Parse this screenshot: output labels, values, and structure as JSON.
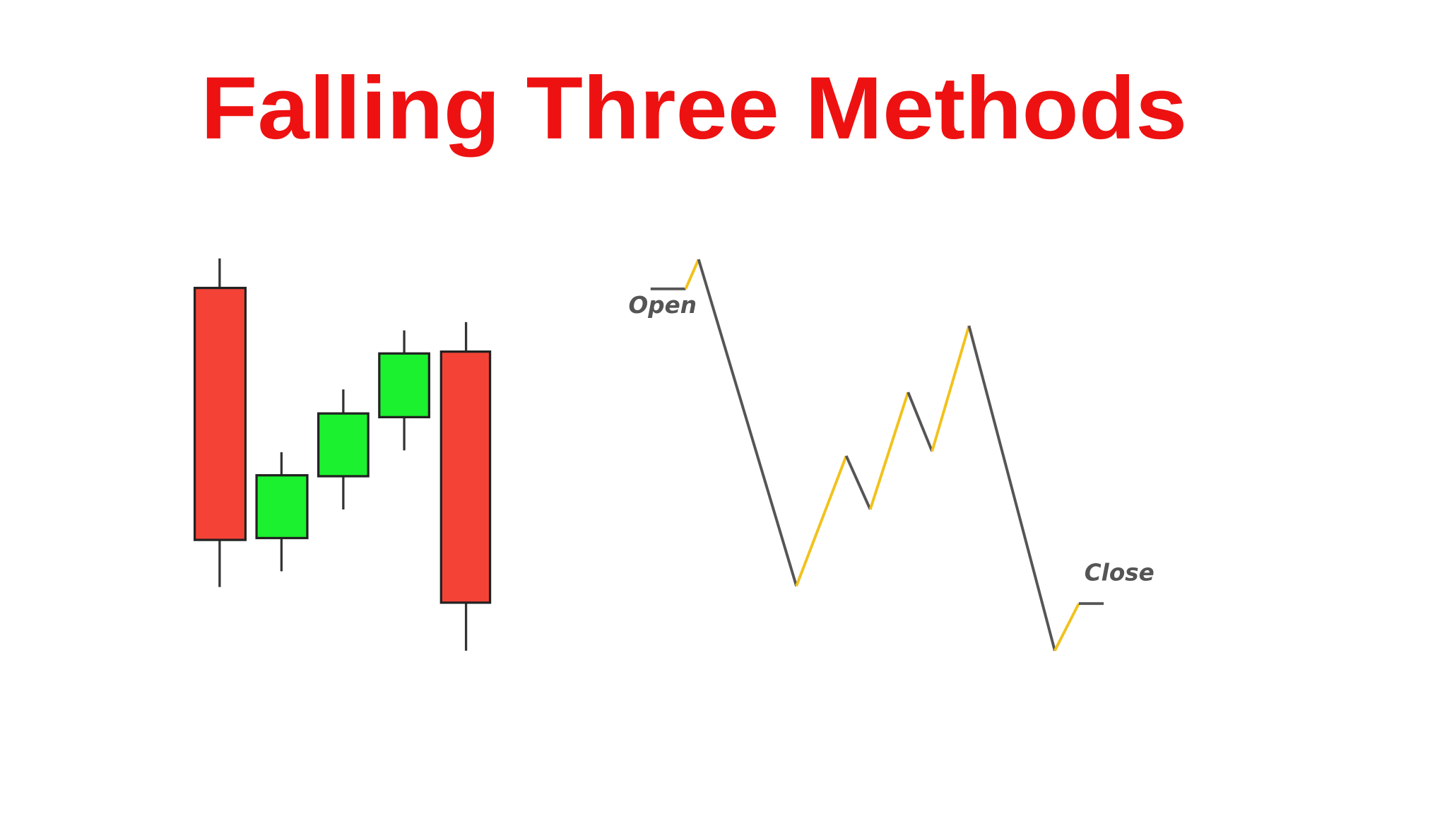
{
  "title": "Falling Three Methods",
  "labels": {
    "open": "Open",
    "close": "Close"
  }
}
